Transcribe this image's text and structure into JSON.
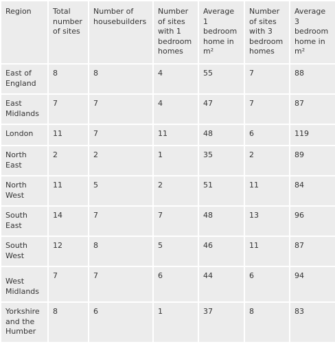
{
  "table": {
    "headers": [
      "Region",
      "Total number of sites",
      "Number of housebuilders",
      "Number of sites with 1 bedroom homes",
      "Average 1 bedroom home in m²",
      "Number of sites with 3 bedroom homes",
      "Average 3 bedroom home in m²"
    ],
    "rows": [
      [
        "East of England",
        "8",
        "8",
        "4",
        "55",
        "7",
        "88"
      ],
      [
        "East Midlands",
        "7",
        "7",
        "4",
        "47",
        "7",
        "87"
      ],
      [
        "London",
        "11",
        "7",
        "11",
        "48",
        "6",
        "119"
      ],
      [
        "North East",
        "2",
        "2",
        "1",
        "35",
        "2",
        "89"
      ],
      [
        "North West",
        "11",
        "5",
        "2",
        "51",
        "11",
        "84"
      ],
      [
        "South East",
        "14",
        "7",
        "7",
        "48",
        "13",
        "96"
      ],
      [
        "South West",
        "12",
        "8",
        "5",
        "46",
        "11",
        "87"
      ],
      [
        "West Midlands",
        "7",
        "7",
        "6",
        "44",
        "6",
        "94"
      ],
      [
        "Yorkshire and the Humber",
        "8",
        "6",
        "1",
        "37",
        "8",
        "83"
      ]
    ]
  }
}
